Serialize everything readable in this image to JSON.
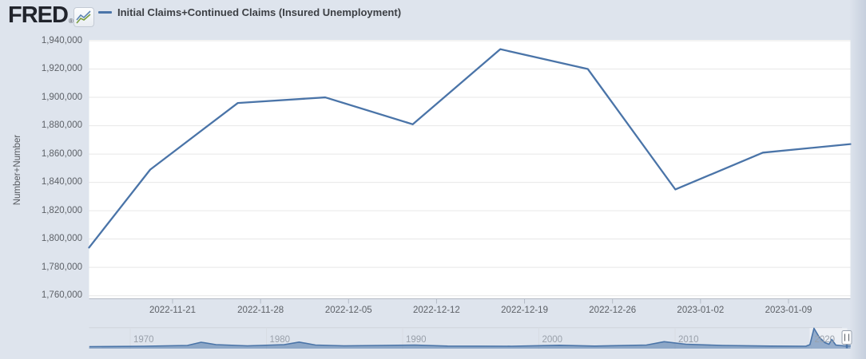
{
  "header": {
    "logo_text": "FRED",
    "registered_mark": "®",
    "legend": {
      "label": "Initial Claims+Continued Claims (Insured Unemployment)",
      "color": "#4a74a8"
    }
  },
  "chart_data": {
    "type": "line",
    "title": "",
    "ylabel": "Number+Number",
    "xlabel": "",
    "grid": "horizontal-only",
    "legend_position": "top-left",
    "ylim": [
      1757500,
      1940500
    ],
    "line_color": "#4a74a8",
    "series": [
      {
        "name": "Initial Claims+Continued Claims (Insured Unemployment)",
        "color": "#4a74a8",
        "dates": [
          "2022-11-19",
          "2022-11-26",
          "2022-12-03",
          "2022-12-10",
          "2022-12-17",
          "2022-12-24",
          "2022-12-31",
          "2023-01-07",
          "2023-01-14"
        ],
        "values": [
          1849000,
          1896000,
          1900000,
          1881000,
          1934000,
          1920000,
          1835000,
          1861000,
          1867000
        ],
        "left_edge_entry_value": 1794000
      }
    ],
    "yticks": {
      "values": [
        1940000,
        1920000,
        1900000,
        1880000,
        1860000,
        1840000,
        1820000,
        1800000,
        1780000,
        1760000
      ],
      "labels": [
        "1,940,000",
        "1,920,000",
        "1,900,000",
        "1,880,000",
        "1,860,000",
        "1,840,000",
        "1,820,000",
        "1,800,000",
        "1,780,000",
        "1,760,000"
      ]
    },
    "xticks": {
      "labels": [
        "2022-11-21",
        "2022-11-28",
        "2022-12-05",
        "2022-12-12",
        "2022-12-19",
        "2022-12-26",
        "2023-01-02",
        "2023-01-09"
      ]
    }
  },
  "navigator": {
    "xtick_labels": [
      "1970",
      "1980",
      "1990",
      "2000",
      "2010",
      "2020"
    ],
    "series_color": "#4a74a8",
    "fill_color": "rgba(74,116,168,0.55)",
    "profile_year_height": [
      [
        1967.0,
        0.08
      ],
      [
        1971.0,
        0.1
      ],
      [
        1974.2,
        0.14
      ],
      [
        1975.2,
        0.3
      ],
      [
        1976.3,
        0.18
      ],
      [
        1978.6,
        0.12
      ],
      [
        1981.3,
        0.18
      ],
      [
        1982.4,
        0.31
      ],
      [
        1983.6,
        0.16
      ],
      [
        1985.7,
        0.12
      ],
      [
        1990.9,
        0.16
      ],
      [
        1993.3,
        0.11
      ],
      [
        1998.0,
        0.1
      ],
      [
        2001.5,
        0.15
      ],
      [
        2004.1,
        0.11
      ],
      [
        2007.9,
        0.16
      ],
      [
        2009.2,
        0.33
      ],
      [
        2010.8,
        0.2
      ],
      [
        2013.5,
        0.14
      ],
      [
        2017.0,
        0.11
      ],
      [
        2019.6,
        0.1
      ],
      [
        2019.9,
        0.18
      ],
      [
        2020.2,
        1.0
      ],
      [
        2020.6,
        0.54
      ],
      [
        2021.0,
        0.28
      ],
      [
        2021.3,
        0.2
      ],
      [
        2021.5,
        0.44
      ],
      [
        2021.8,
        0.16
      ],
      [
        2022.4,
        0.12
      ],
      [
        2022.9,
        0.12
      ]
    ],
    "handle": "range-selector-handle"
  }
}
